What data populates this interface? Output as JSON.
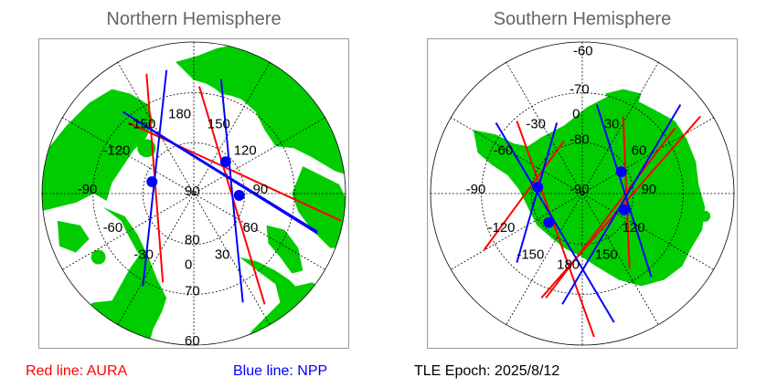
{
  "north": {
    "title": "Northern Hemisphere",
    "lon_labels": [
      "180",
      "-150",
      "150",
      "-120",
      "120",
      "-90",
      "90",
      "-60",
      "60",
      "-30",
      "30",
      "0"
    ],
    "lat_labels": [
      "90",
      "80",
      "70",
      "60"
    ]
  },
  "south": {
    "title": "Southern Hemisphere",
    "lon_labels": [
      "0",
      "-30",
      "30",
      "-60",
      "60",
      "-90",
      "90",
      "-120",
      "120",
      "-150",
      "150",
      "180"
    ],
    "lat_labels": [
      "-60",
      "-70",
      "-80",
      "-90"
    ]
  },
  "legend": {
    "red": "Red line: AURA",
    "blue": "Blue line: NPP",
    "epoch": "TLE Epoch: 2025/8/12"
  },
  "colors": {
    "land": "#00cc00",
    "aura": "#ff0000",
    "npp": "#0000ff",
    "grid": "#000000"
  }
}
